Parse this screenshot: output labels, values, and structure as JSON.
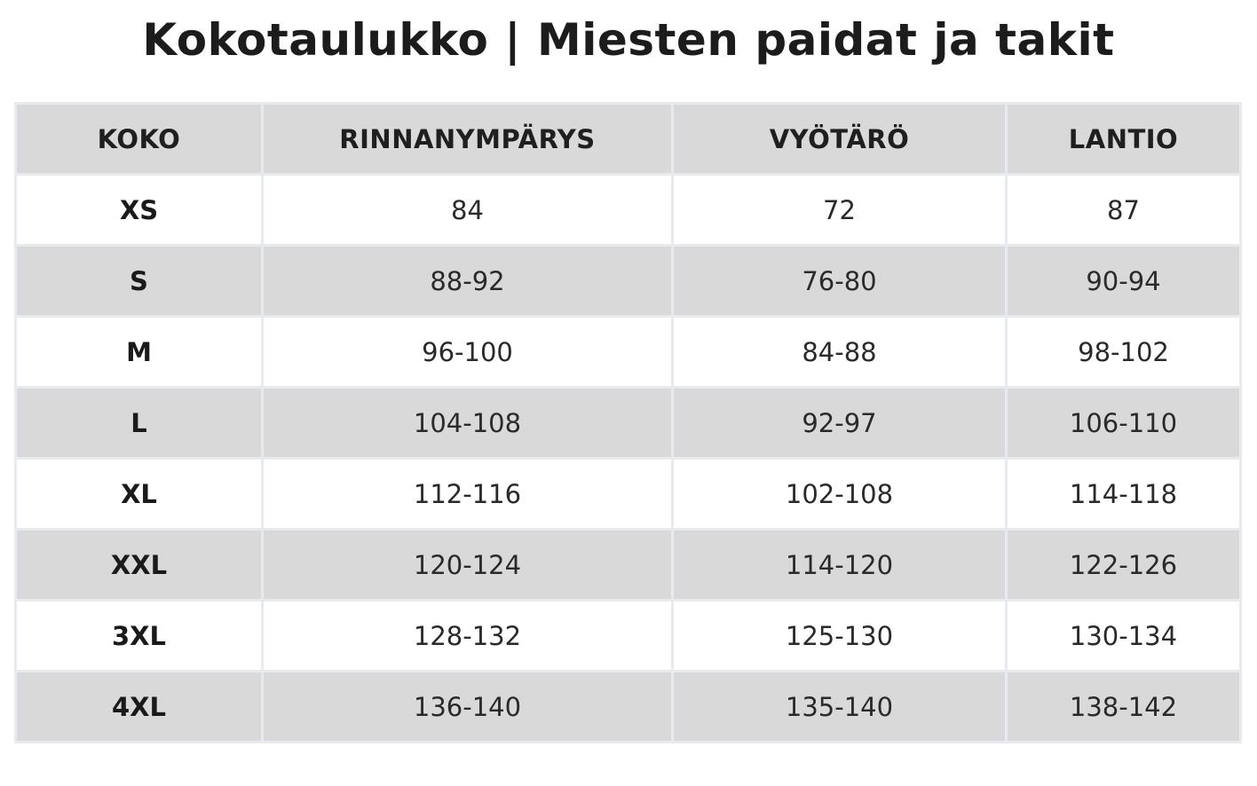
{
  "title": "Kokotaulukko | Miesten paidat ja takit",
  "colors": {
    "header_bg": "#d9d9d9",
    "stripe_bg": "#d9d9d9",
    "row_bg": "#ffffff",
    "border": "#e7eaee",
    "text": "#1f1f1f"
  },
  "table": {
    "headers": [
      "KOKO",
      "RINNANYMPÄRYS",
      "VYÖTÄRÖ",
      "LANTIO"
    ],
    "rows": [
      {
        "size": "XS",
        "chest": "84",
        "waist": "72",
        "hip": "87"
      },
      {
        "size": "S",
        "chest": "88-92",
        "waist": "76-80",
        "hip": "90-94"
      },
      {
        "size": "M",
        "chest": "96-100",
        "waist": "84-88",
        "hip": "98-102"
      },
      {
        "size": "L",
        "chest": "104-108",
        "waist": "92-97",
        "hip": "106-110"
      },
      {
        "size": "XL",
        "chest": "112-116",
        "waist": "102-108",
        "hip": "114-118"
      },
      {
        "size": "XXL",
        "chest": "120-124",
        "waist": "114-120",
        "hip": "122-126"
      },
      {
        "size": "3XL",
        "chest": "128-132",
        "waist": "125-130",
        "hip": "130-134"
      },
      {
        "size": "4XL",
        "chest": "136-140",
        "waist": "135-140",
        "hip": "138-142"
      }
    ]
  }
}
